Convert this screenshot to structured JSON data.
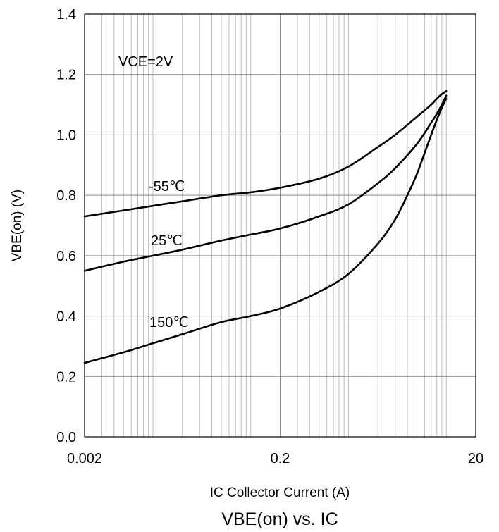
{
  "chart_data": {
    "type": "line",
    "title": "VBE(on) vs. IC",
    "xlabel": "IC Collector Current (A)",
    "ylabel": "VBE(on) (V)",
    "x_scale": "log",
    "xlim": [
      0.002,
      20
    ],
    "ylim": [
      0,
      1.4
    ],
    "x_ticks": [
      "0.002",
      "0.2",
      "20"
    ],
    "y_ticks": [
      "0.0",
      "0.2",
      "0.4",
      "0.6",
      "0.8",
      "1.0",
      "1.2",
      "1.4"
    ],
    "grid": true,
    "annotation": "VCE=2V",
    "series": [
      {
        "name": "-55℃",
        "x": [
          0.002,
          0.005,
          0.01,
          0.02,
          0.05,
          0.1,
          0.2,
          0.5,
          1,
          2,
          3,
          5,
          7,
          8,
          9,
          10
        ],
        "y": [
          0.73,
          0.75,
          0.765,
          0.78,
          0.8,
          0.81,
          0.825,
          0.855,
          0.895,
          0.96,
          1.0,
          1.06,
          1.1,
          1.12,
          1.135,
          1.145
        ]
      },
      {
        "name": "25℃",
        "x": [
          0.002,
          0.005,
          0.01,
          0.02,
          0.05,
          0.1,
          0.2,
          0.5,
          1,
          2,
          3,
          5,
          7,
          8,
          9,
          10
        ],
        "y": [
          0.55,
          0.58,
          0.6,
          0.62,
          0.65,
          0.67,
          0.69,
          0.73,
          0.77,
          0.84,
          0.89,
          0.97,
          1.04,
          1.07,
          1.1,
          1.13
        ]
      },
      {
        "name": "150℃",
        "x": [
          0.002,
          0.005,
          0.01,
          0.02,
          0.05,
          0.1,
          0.2,
          0.5,
          1,
          2,
          3,
          4,
          5,
          6,
          7,
          8,
          9,
          10
        ],
        "y": [
          0.245,
          0.28,
          0.31,
          0.34,
          0.38,
          0.4,
          0.425,
          0.48,
          0.54,
          0.64,
          0.72,
          0.8,
          0.87,
          0.94,
          1.0,
          1.05,
          1.09,
          1.12
        ]
      }
    ]
  }
}
